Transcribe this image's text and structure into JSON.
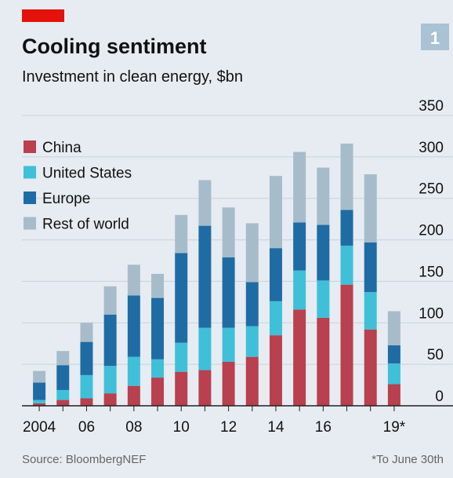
{
  "chart_data": {
    "type": "stacked_bar",
    "badge": "1",
    "title": "Cooling sentiment",
    "subtitle": "Investment in clean energy, $bn",
    "source": "Source: BloombergNEF",
    "footnote": "*To June 30th",
    "categories": [
      "2004",
      null,
      "06",
      null,
      "08",
      null,
      "10",
      null,
      "12",
      null,
      "14",
      null,
      "16",
      null,
      null,
      "19*"
    ],
    "series": [
      {
        "name": "China",
        "color": "#b8404f",
        "values": [
          3,
          7,
          9,
          15,
          24,
          34,
          41,
          43,
          53,
          59,
          85,
          116,
          106,
          146,
          92,
          26
        ]
      },
      {
        "name": "United States",
        "color": "#3fc0d8",
        "values": [
          4,
          12,
          28,
          33,
          35,
          22,
          35,
          51,
          41,
          37,
          41,
          47,
          45,
          47,
          45,
          25
        ]
      },
      {
        "name": "Europe",
        "color": "#1f6ca5",
        "values": [
          21,
          30,
          40,
          62,
          74,
          74,
          108,
          123,
          85,
          53,
          64,
          58,
          67,
          43,
          60,
          22
        ]
      },
      {
        "name": "Rest of world",
        "color": "#a7bccb",
        "values": [
          14,
          17,
          23,
          34,
          37,
          29,
          46,
          55,
          60,
          71,
          87,
          85,
          69,
          80,
          82,
          41
        ]
      }
    ],
    "ylim": [
      0,
      350
    ],
    "yticks": [
      0,
      50,
      100,
      150,
      200,
      250,
      300,
      350
    ],
    "grid": true,
    "legend_position": "top-left"
  }
}
